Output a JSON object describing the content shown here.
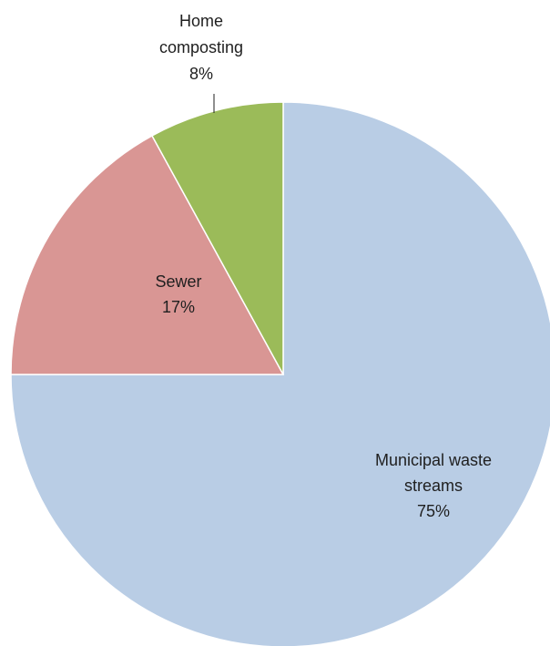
{
  "chart_data": {
    "type": "pie",
    "title": "",
    "start_angle_deg": 0,
    "direction": "clockwise",
    "slices": [
      {
        "name": "Municipal waste streams",
        "label_lines": [
          "Municipal waste",
          "streams"
        ],
        "value": 75,
        "percent_label": "75%",
        "color": "#b9cde5"
      },
      {
        "name": "Sewer",
        "label_lines": [
          "Sewer"
        ],
        "value": 17,
        "percent_label": "17%",
        "color": "#d99694"
      },
      {
        "name": "Home composting",
        "label_lines": [
          "Home",
          "composting"
        ],
        "value": 8,
        "percent_label": "8%",
        "color": "#9bbb59"
      }
    ],
    "legend": "none"
  }
}
